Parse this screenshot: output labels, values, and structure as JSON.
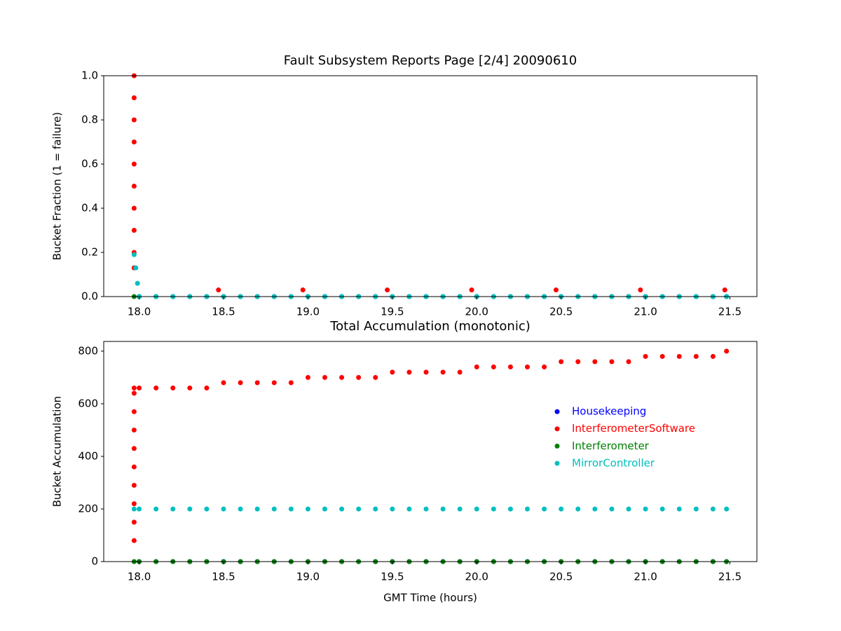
{
  "chart_data": [
    {
      "type": "scatter",
      "title": "Fault Subsystem Reports Page [2/4] 20090610",
      "ylabel": "Bucket Fraction (1 = failure)",
      "xlim": [
        17.79,
        21.66
      ],
      "ylim": [
        0,
        1
      ],
      "xticks": [
        {
          "value": 18,
          "label": "18.0"
        },
        {
          "value": 18.5,
          "label": "18.5"
        },
        {
          "value": 19,
          "label": "19.0"
        },
        {
          "value": 19.5,
          "label": "19.5"
        },
        {
          "value": 20,
          "label": "20.0"
        },
        {
          "value": 20.5,
          "label": "20.5"
        },
        {
          "value": 21,
          "label": "21.0"
        },
        {
          "value": 21.5,
          "label": "21.5"
        }
      ],
      "yticks": [
        {
          "value": 0,
          "label": "0.0"
        },
        0.2,
        0.4,
        0.6,
        0.8,
        {
          "value": 1,
          "label": "1.0"
        }
      ],
      "series": [
        {
          "name": "Housekeeping",
          "color": "#0000ff",
          "x": [
            18,
            18.1,
            18.2,
            18.3,
            18.4,
            18.5,
            18.6,
            18.7,
            18.8,
            18.9,
            19,
            19.1,
            19.2,
            19.3,
            19.4,
            19.5,
            19.6,
            19.7,
            19.8,
            19.9,
            20,
            20.1,
            20.2,
            20.3,
            20.4,
            20.5,
            20.6,
            20.7,
            20.8,
            20.9,
            21,
            21.1,
            21.2,
            21.3,
            21.4,
            21.48
          ],
          "values": [
            0,
            0,
            0,
            0,
            0,
            0,
            0,
            0,
            0,
            0,
            0,
            0,
            0,
            0,
            0,
            0,
            0,
            0,
            0,
            0,
            0,
            0,
            0,
            0,
            0,
            0,
            0,
            0,
            0,
            0,
            0,
            0,
            0,
            0,
            0,
            0
          ]
        },
        {
          "name": "InterferometerSoftware",
          "color": "#ff0000",
          "x": [
            17.97,
            17.97,
            17.97,
            17.97,
            17.97,
            17.97,
            17.97,
            17.97,
            17.97,
            17.97,
            18.47,
            18.97,
            19.47,
            19.97,
            20.47,
            20.97,
            21.47
          ],
          "values": [
            0.13,
            0.2,
            0.3,
            0.4,
            0.5,
            0.6,
            0.7,
            0.8,
            0.9,
            1,
            0.03,
            0.03,
            0.03,
            0.03,
            0.03,
            0.03,
            0.03
          ]
        },
        {
          "name": "Interferometer",
          "color": "#008000",
          "x": [
            17.97,
            18,
            18.1,
            18.2,
            18.3,
            18.4,
            18.5,
            18.6,
            18.7,
            18.8,
            18.9,
            19,
            19.1,
            19.2,
            19.3,
            19.4,
            19.5,
            19.6,
            19.7,
            19.8,
            19.9,
            20,
            20.1,
            20.2,
            20.3,
            20.4,
            20.5,
            20.6,
            20.7,
            20.8,
            20.9,
            21,
            21.1,
            21.2,
            21.3,
            21.4,
            21.48
          ],
          "values": [
            0,
            0,
            0,
            0,
            0,
            0,
            0,
            0,
            0,
            0,
            0,
            0,
            0,
            0,
            0,
            0,
            0,
            0,
            0,
            0,
            0,
            0,
            0,
            0,
            0,
            0,
            0,
            0,
            0,
            0,
            0,
            0,
            0,
            0,
            0,
            0,
            0
          ]
        },
        {
          "name": "MirrorController",
          "color": "#00bfbf",
          "x": [
            17.97,
            17.98,
            17.99,
            18,
            18.1,
            18.2,
            18.3,
            18.4,
            18.5,
            18.6,
            18.7,
            18.8,
            18.9,
            19,
            19.1,
            19.2,
            19.3,
            19.4,
            19.5,
            19.6,
            19.7,
            19.8,
            19.9,
            20,
            20.1,
            20.2,
            20.3,
            20.4,
            20.5,
            20.6,
            20.7,
            20.8,
            20.9,
            21,
            21.1,
            21.2,
            21.3,
            21.4,
            21.48
          ],
          "values": [
            0.19,
            0.13,
            0.06,
            0,
            0,
            0,
            0,
            0,
            0,
            0,
            0,
            0,
            0,
            0,
            0,
            0,
            0,
            0,
            0,
            0,
            0,
            0,
            0,
            0,
            0,
            0,
            0,
            0,
            0,
            0,
            0,
            0,
            0,
            0,
            0,
            0,
            0,
            0,
            0
          ]
        }
      ]
    },
    {
      "type": "scatter",
      "title": "Total Accumulation (monotonic)",
      "xlabel": "GMT Time (hours)",
      "ylabel": "Bucket Accumulation",
      "xlim": [
        17.79,
        21.66
      ],
      "ylim": [
        0,
        837
      ],
      "legend": "center right",
      "xticks": [
        {
          "value": 18,
          "label": "18.0"
        },
        {
          "value": 18.5,
          "label": "18.5"
        },
        {
          "value": 19,
          "label": "19.0"
        },
        {
          "value": 19.5,
          "label": "19.5"
        },
        {
          "value": 20,
          "label": "20.0"
        },
        {
          "value": 20.5,
          "label": "20.5"
        },
        {
          "value": 21,
          "label": "21.0"
        },
        {
          "value": 21.5,
          "label": "21.5"
        }
      ],
      "yticks": [
        0,
        200,
        400,
        600,
        800
      ],
      "series": [
        {
          "name": "Housekeeping",
          "color": "#0000ff",
          "x": [
            18,
            18.1,
            18.2,
            18.3,
            18.4,
            18.5,
            18.6,
            18.7,
            18.8,
            18.9,
            19,
            19.1,
            19.2,
            19.3,
            19.4,
            19.5,
            19.6,
            19.7,
            19.8,
            19.9,
            20,
            20.1,
            20.2,
            20.3,
            20.4,
            20.5,
            20.6,
            20.7,
            20.8,
            20.9,
            21,
            21.1,
            21.2,
            21.3,
            21.4,
            21.48
          ],
          "values": [
            0,
            0,
            0,
            0,
            0,
            0,
            0,
            0,
            0,
            0,
            0,
            0,
            0,
            0,
            0,
            0,
            0,
            0,
            0,
            0,
            0,
            0,
            0,
            0,
            0,
            0,
            0,
            0,
            0,
            0,
            0,
            0,
            0,
            0,
            0,
            0
          ]
        },
        {
          "name": "InterferometerSoftware",
          "color": "#ff0000",
          "x": [
            17.97,
            17.97,
            17.97,
            17.97,
            17.97,
            17.97,
            17.97,
            17.97,
            17.97,
            17.97,
            18,
            18.1,
            18.2,
            18.3,
            18.4,
            18.5,
            18.6,
            18.7,
            18.8,
            18.9,
            19,
            19.1,
            19.2,
            19.3,
            19.4,
            19.5,
            19.6,
            19.7,
            19.8,
            19.9,
            20,
            20.1,
            20.2,
            20.3,
            20.4,
            20.5,
            20.6,
            20.7,
            20.8,
            20.9,
            21,
            21.1,
            21.2,
            21.3,
            21.4,
            21.48
          ],
          "values": [
            80,
            150,
            220,
            290,
            360,
            430,
            500,
            570,
            640,
            660,
            660,
            660,
            660,
            660,
            660,
            680,
            680,
            680,
            680,
            680,
            700,
            700,
            700,
            700,
            700,
            720,
            720,
            720,
            720,
            720,
            740,
            740,
            740,
            740,
            740,
            760,
            760,
            760,
            760,
            760,
            780,
            780,
            780,
            780,
            780,
            800
          ]
        },
        {
          "name": "Interferometer",
          "color": "#008000",
          "x": [
            17.97,
            18,
            18.1,
            18.2,
            18.3,
            18.4,
            18.5,
            18.6,
            18.7,
            18.8,
            18.9,
            19,
            19.1,
            19.2,
            19.3,
            19.4,
            19.5,
            19.6,
            19.7,
            19.8,
            19.9,
            20,
            20.1,
            20.2,
            20.3,
            20.4,
            20.5,
            20.6,
            20.7,
            20.8,
            20.9,
            21,
            21.1,
            21.2,
            21.3,
            21.4,
            21.48
          ],
          "values": [
            0,
            0,
            0,
            0,
            0,
            0,
            0,
            0,
            0,
            0,
            0,
            0,
            0,
            0,
            0,
            0,
            0,
            0,
            0,
            0,
            0,
            0,
            0,
            0,
            0,
            0,
            0,
            0,
            0,
            0,
            0,
            0,
            0,
            0,
            0,
            0,
            0
          ]
        },
        {
          "name": "MirrorController",
          "color": "#00bfbf",
          "x": [
            17.97,
            18,
            18.1,
            18.2,
            18.3,
            18.4,
            18.5,
            18.6,
            18.7,
            18.8,
            18.9,
            19,
            19.1,
            19.2,
            19.3,
            19.4,
            19.5,
            19.6,
            19.7,
            19.8,
            19.9,
            20,
            20.1,
            20.2,
            20.3,
            20.4,
            20.5,
            20.6,
            20.7,
            20.8,
            20.9,
            21,
            21.1,
            21.2,
            21.3,
            21.4,
            21.48
          ],
          "values": [
            200,
            200,
            200,
            200,
            200,
            200,
            200,
            200,
            200,
            200,
            200,
            200,
            200,
            200,
            200,
            200,
            200,
            200,
            200,
            200,
            200,
            200,
            200,
            200,
            200,
            200,
            200,
            200,
            200,
            200,
            200,
            200,
            200,
            200,
            200,
            200,
            200
          ]
        }
      ]
    }
  ]
}
